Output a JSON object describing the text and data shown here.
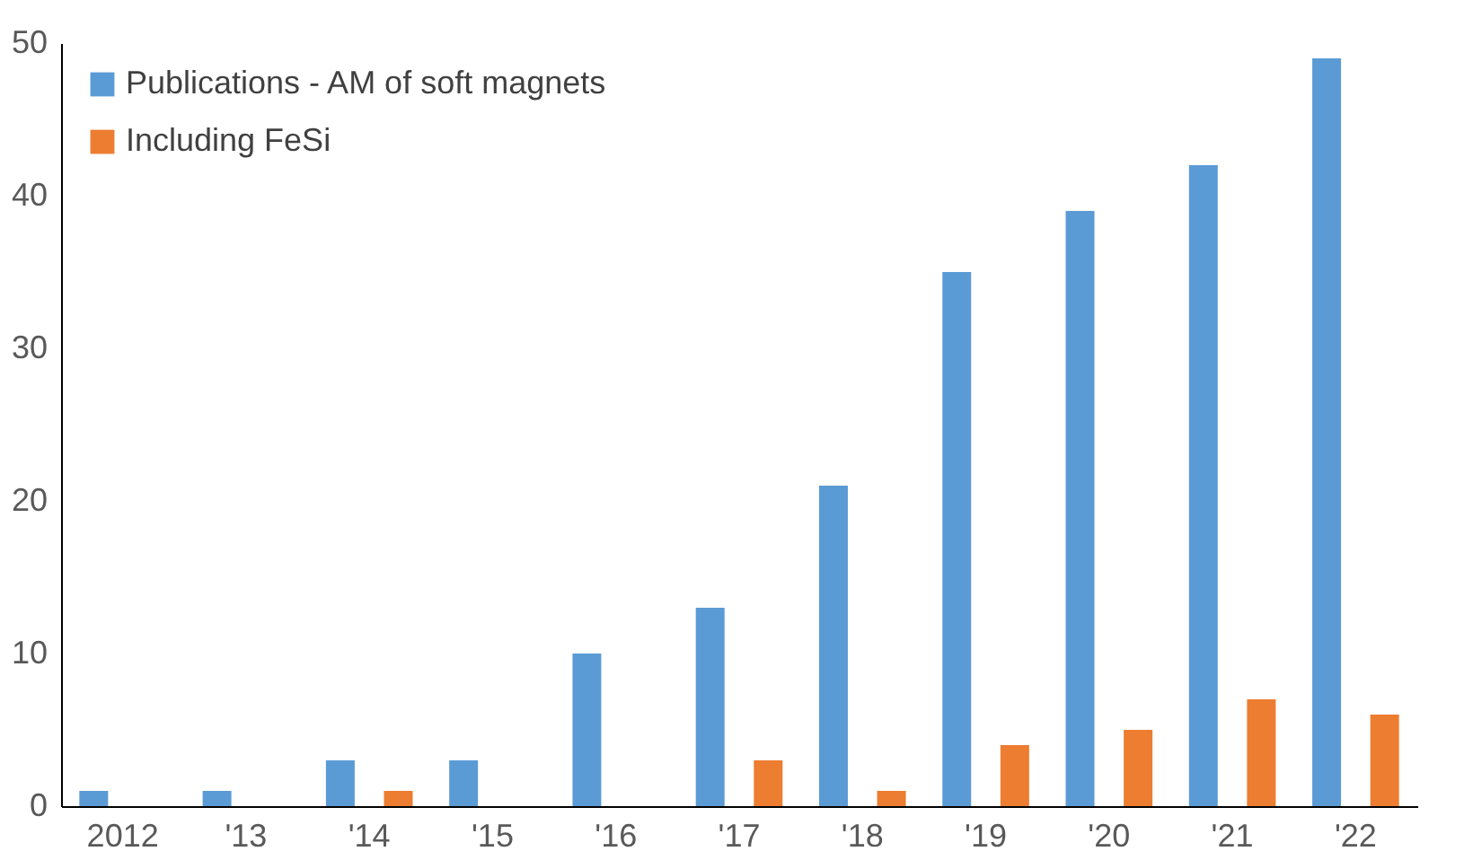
{
  "chart_data": {
    "type": "bar",
    "categories": [
      "2012",
      "'13",
      "'14",
      "'15",
      "'16",
      "'17",
      "'18",
      "'19",
      "'20",
      "'21",
      "'22"
    ],
    "series": [
      {
        "name": "Publications - AM of soft magnets",
        "color": "#5b9bd5",
        "values": [
          1,
          1,
          3,
          3,
          10,
          13,
          21,
          35,
          39,
          42,
          49
        ]
      },
      {
        "name": "Including FeSi",
        "color": "#ed7d31",
        "values": [
          0,
          0,
          1,
          0,
          0,
          3,
          1,
          4,
          5,
          7,
          6
        ]
      }
    ],
    "ylim": [
      0,
      50
    ],
    "yticks": [
      0,
      10,
      20,
      30,
      40,
      50
    ],
    "grid": false,
    "legend": "top left"
  }
}
